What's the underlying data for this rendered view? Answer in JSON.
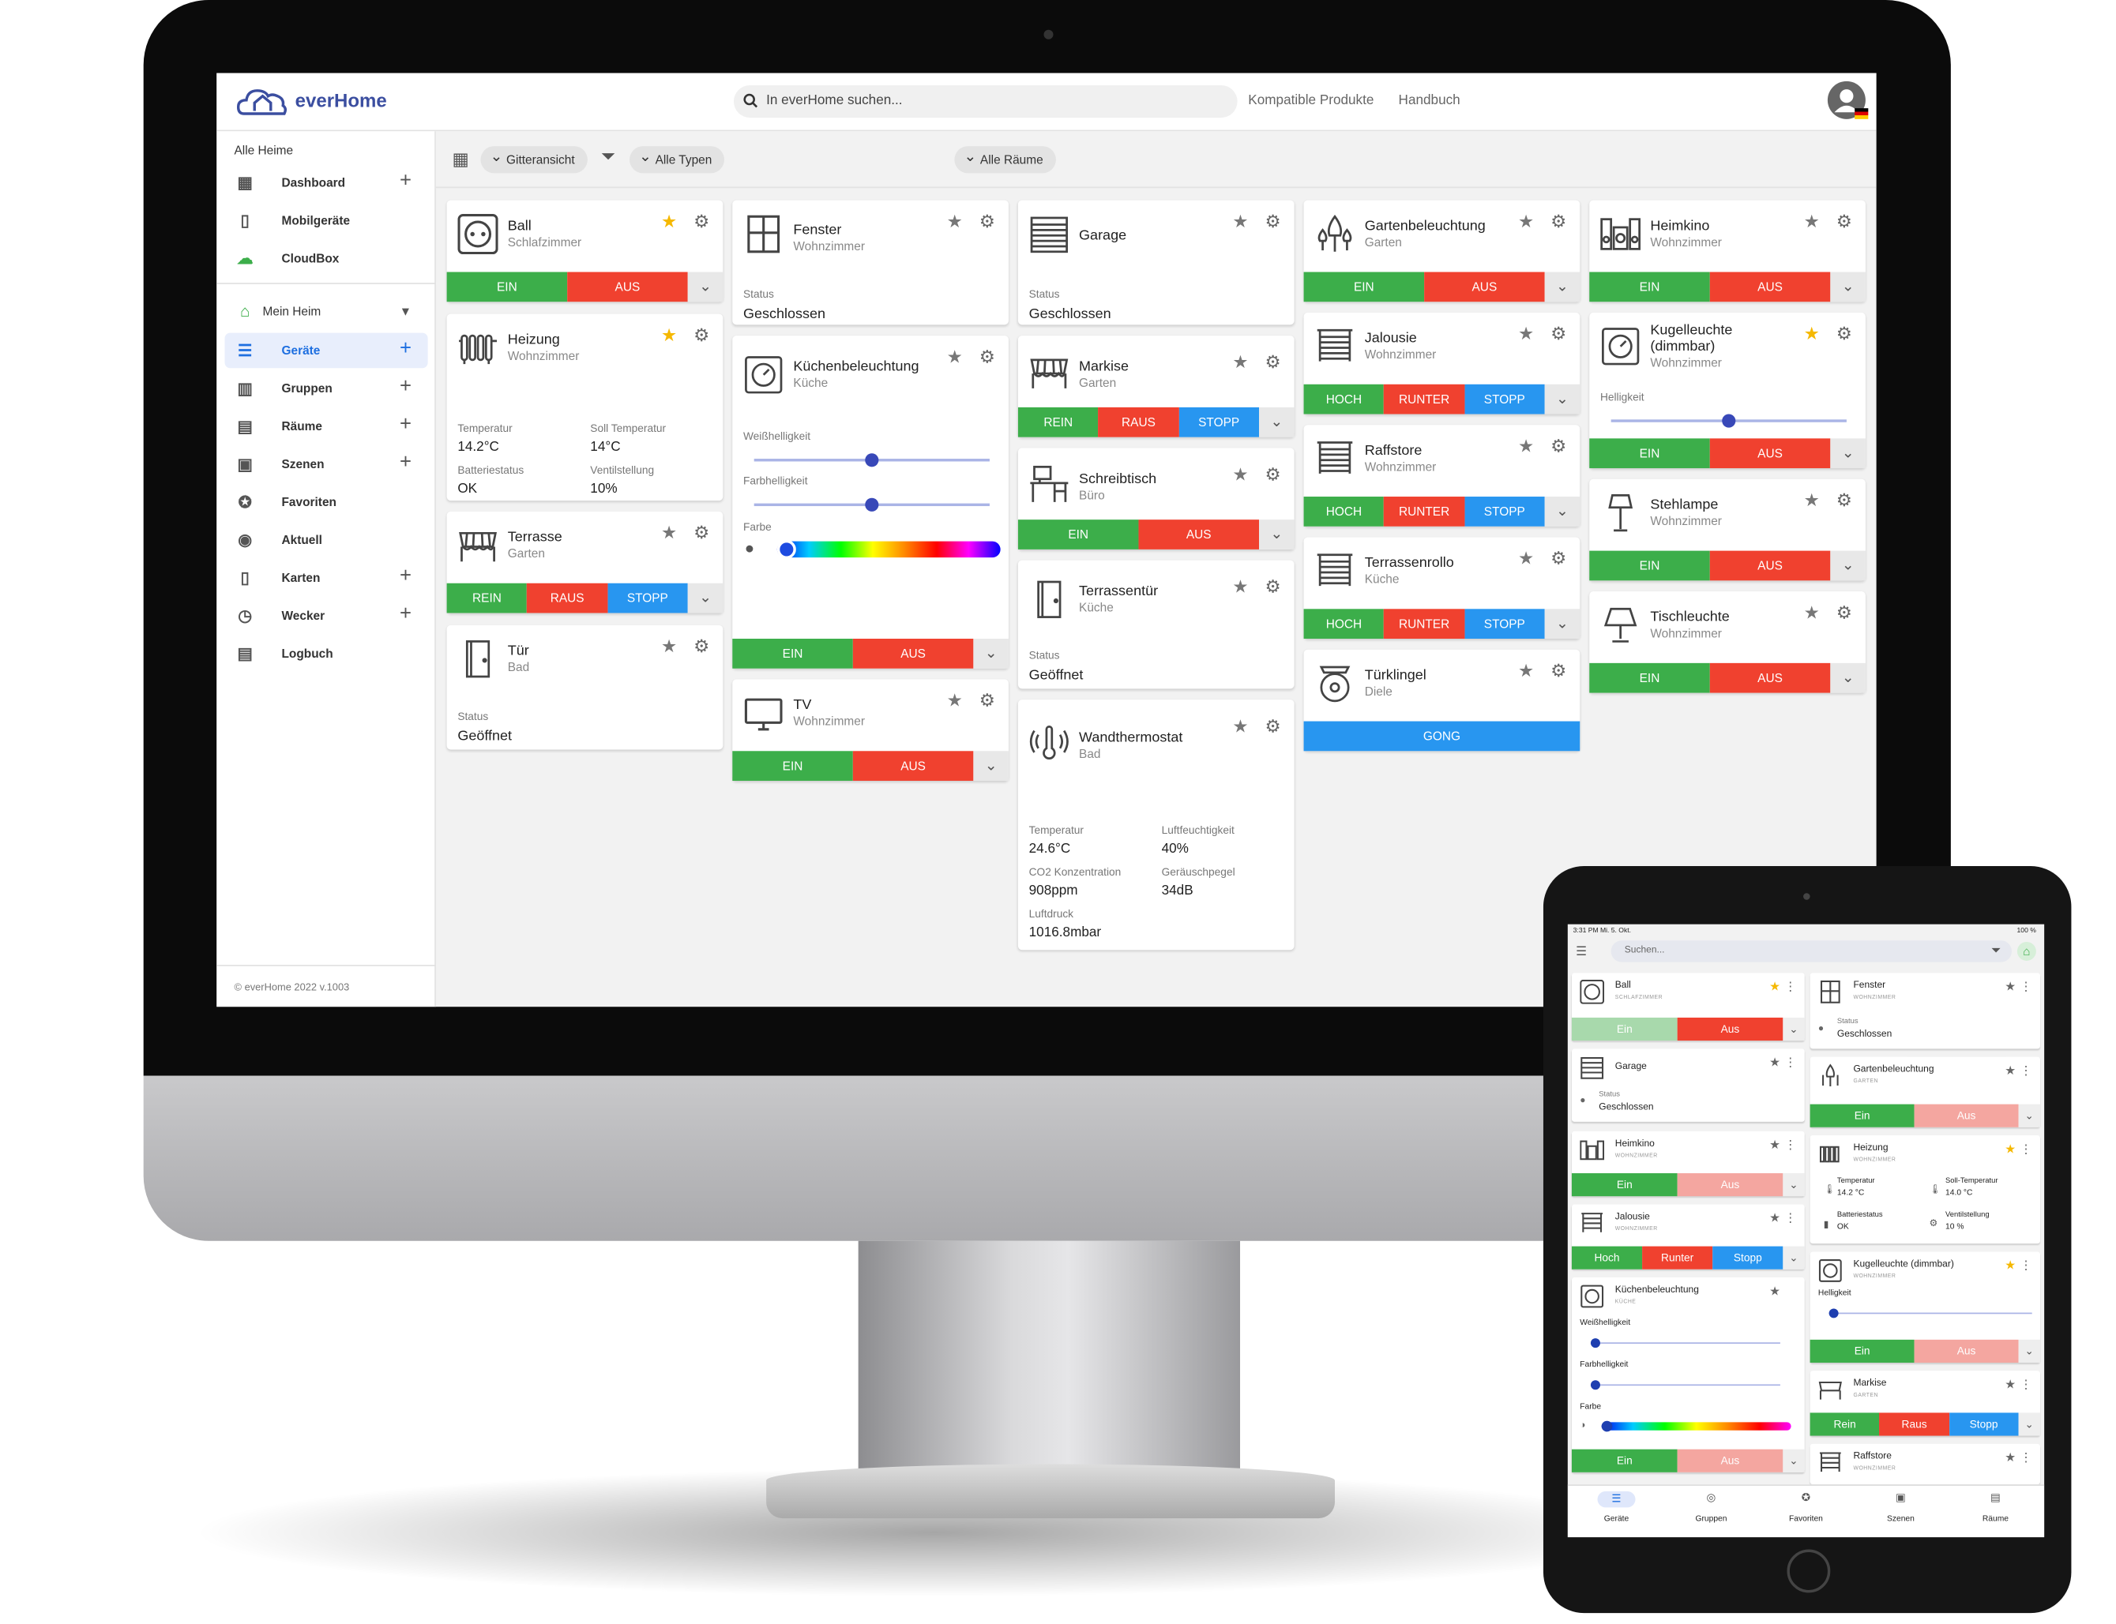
{
  "header": {
    "brand": "everHome",
    "search_placeholder": "In everHome suchen...",
    "link_products": "Kompatible Produkte",
    "link_manual": "Handbuch"
  },
  "sidebar": {
    "section_all": "Alle Heime",
    "items_top": [
      {
        "label": "Dashboard",
        "icon": "dashboard-icon",
        "plus": true
      },
      {
        "label": "Mobilgeräte",
        "icon": "phone-icon",
        "plus": false
      },
      {
        "label": "CloudBox",
        "icon": "cloud-icon",
        "plus": false
      }
    ],
    "home": "Mein Heim",
    "items": [
      {
        "label": "Geräte",
        "icon": "devices-icon",
        "plus": true,
        "active": true
      },
      {
        "label": "Gruppen",
        "icon": "groups-icon",
        "plus": true
      },
      {
        "label": "Räume",
        "icon": "rooms-icon",
        "plus": true
      },
      {
        "label": "Szenen",
        "icon": "scenes-icon",
        "plus": true
      },
      {
        "label": "Favoriten",
        "icon": "star-icon",
        "plus": false
      },
      {
        "label": "Aktuell",
        "icon": "eye-icon",
        "plus": false
      },
      {
        "label": "Karten",
        "icon": "map-icon",
        "plus": true
      },
      {
        "label": "Wecker",
        "icon": "alarm-icon",
        "plus": true
      },
      {
        "label": "Logbuch",
        "icon": "clipboard-icon",
        "plus": false
      }
    ],
    "footer": "© everHome 2022 v.1003"
  },
  "toolbar": {
    "view": "Gitteransicht",
    "types": "Alle Typen",
    "rooms": "Alle Räume"
  },
  "labels": {
    "ein": "EIN",
    "aus": "AUS",
    "rein": "REIN",
    "raus": "RAUS",
    "stopp": "STOPP",
    "hoch": "HOCH",
    "runter": "RUNTER",
    "gong": "GONG",
    "status": "Status",
    "weiss": "Weißhelligkeit",
    "farbh": "Farbhelligkeit",
    "farbe": "Farbe",
    "helligkeit": "Helligkeit"
  },
  "cards": {
    "ball": {
      "name": "Ball",
      "room": "Schlafzimmer"
    },
    "heizung": {
      "name": "Heizung",
      "room": "Wohnzimmer",
      "l1": "Temperatur",
      "v1": "14.2°C",
      "l2": "Soll Temperatur",
      "v2": "14°C",
      "l3": "Batteriestatus",
      "v3": "OK",
      "l4": "Ventilstellung",
      "v4": "10%"
    },
    "terrasse": {
      "name": "Terrasse",
      "room": "Garten"
    },
    "tuer": {
      "name": "Tür",
      "room": "Bad",
      "status": "Geöffnet"
    },
    "fenster": {
      "name": "Fenster",
      "room": "Wohnzimmer",
      "status": "Geschlossen"
    },
    "kueche": {
      "name": "Küchenbeleuchtung",
      "room": "Küche"
    },
    "tv": {
      "name": "TV",
      "room": "Wohnzimmer"
    },
    "garage": {
      "name": "Garage",
      "status": "Geschlossen"
    },
    "markise": {
      "name": "Markise",
      "room": "Garten"
    },
    "schreib": {
      "name": "Schreibtisch",
      "room": "Büro"
    },
    "tertuer": {
      "name": "Terrassentür",
      "room": "Küche",
      "status": "Geöffnet"
    },
    "thermo": {
      "name": "Wandthermostat",
      "room": "Bad",
      "l1": "Temperatur",
      "v1": "24.6°C",
      "l2": "Luftfeuchtigkeit",
      "v2": "40%",
      "l3": "CO2 Konzentration",
      "v3": "908ppm",
      "l4": "Geräuschpegel",
      "v4": "34dB",
      "l5": "Luftdruck",
      "v5": "1016.8mbar"
    },
    "garten": {
      "name": "Gartenbeleuchtung",
      "room": "Garten"
    },
    "jalousie": {
      "name": "Jalousie",
      "room": "Wohnzimmer"
    },
    "raff": {
      "name": "Raffstore",
      "room": "Wohnzimmer"
    },
    "rollo": {
      "name": "Terrassenrollo",
      "room": "Küche"
    },
    "klingel": {
      "name": "Türklingel",
      "room": "Diele"
    },
    "heimkino": {
      "name": "Heimkino",
      "room": "Wohnzimmer"
    },
    "kugel": {
      "name": "Kugelleuchte",
      "name2": "(dimmbar)",
      "room": "Wohnzimmer"
    },
    "steh": {
      "name": "Stehlampe",
      "room": "Wohnzimmer"
    },
    "tisch": {
      "name": "Tischleuchte",
      "room": "Wohnzimmer"
    }
  },
  "tablet": {
    "time": "3:31 PM  Mi. 5. Okt.",
    "battery": "100 %",
    "search": "Suchen...",
    "ein": "Ein",
    "aus": "Aus",
    "hoch": "Hoch",
    "runter": "Runter",
    "stopp": "Stopp",
    "rein": "Rein",
    "raus": "Raus",
    "ball": {
      "name": "Ball",
      "room": "SCHLAFZIMMER"
    },
    "fenster": {
      "name": "Fenster",
      "room": "WOHNZIMMER",
      "status_label": "Status",
      "status": "Geschlossen"
    },
    "garage": {
      "name": "Garage",
      "status_label": "Status",
      "status": "Geschlossen"
    },
    "garten": {
      "name": "Gartenbeleuchtung",
      "room": "GARTEN"
    },
    "heimkino": {
      "name": "Heimkino",
      "room": "WOHNZIMMER"
    },
    "heizung": {
      "name": "Heizung",
      "room": "WOHNZIMMER",
      "l1": "Temperatur",
      "v1": "14.2 °C",
      "l2": "Soll-Temperatur",
      "v2": "14.0 °C",
      "l3": "Batteriestatus",
      "v3": "OK",
      "l4": "Ventilstellung",
      "v4": "10 %"
    },
    "jalousie": {
      "name": "Jalousie",
      "room": "WOHNZIMMER"
    },
    "kugel": {
      "name": "Kugelleuchte (dimmbar)",
      "room": "WOHNZIMMER",
      "l": "Helligkeit"
    },
    "kueche": {
      "name": "Küchenbeleuchtung",
      "room": "KÜCHE",
      "l1": "Weißhelligkeit",
      "l2": "Farbhelligkeit",
      "l3": "Farbe"
    },
    "markise": {
      "name": "Markise",
      "room": "GARTEN"
    },
    "raff": {
      "name": "Raffstore",
      "room": "WOHNZIMMER"
    },
    "nav": [
      "Geräte",
      "Gruppen",
      "Favoriten",
      "Szenen",
      "Räume"
    ]
  }
}
